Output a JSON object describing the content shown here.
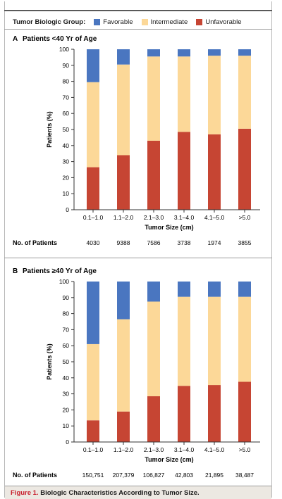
{
  "legend": {
    "title": "Tumor Biologic Group:",
    "items": [
      {
        "label": "Favorable",
        "color": "#4a76c0"
      },
      {
        "label": "Intermediate",
        "color": "#fcd898"
      },
      {
        "label": "Unfavorable",
        "color": "#c64533"
      }
    ]
  },
  "caption": {
    "label": "Figure 1.",
    "text": "Biologic Characteristics According to Tumor Size."
  },
  "chart_data": [
    {
      "type": "bar",
      "stacked": true,
      "panel_letter": "A",
      "title": "Patients <40 Yr of Age",
      "xlabel": "Tumor Size (cm)",
      "ylabel": "Patients (%)",
      "ylim": [
        0,
        100
      ],
      "yticks": [
        0,
        10,
        20,
        30,
        40,
        50,
        60,
        70,
        80,
        90,
        100
      ],
      "categories": [
        "0.1–1.0",
        "1.1–2.0",
        "2.1–3.0",
        "3.1–4.0",
        "4.1–5.0",
        ">5.0"
      ],
      "series": [
        {
          "name": "Unfavorable",
          "color": "#c64533",
          "values": [
            26.5,
            34,
            43,
            48.5,
            47,
            50.5
          ]
        },
        {
          "name": "Intermediate",
          "color": "#fcd898",
          "values": [
            53,
            56.5,
            52.5,
            47,
            49,
            45.5
          ]
        },
        {
          "name": "Favorable",
          "color": "#4a76c0",
          "values": [
            20.5,
            9.5,
            4.5,
            4.5,
            4,
            4
          ]
        }
      ],
      "patients_label": "No. of Patients",
      "patients": [
        "4030",
        "9388",
        "7586",
        "3738",
        "1974",
        "3855"
      ]
    },
    {
      "type": "bar",
      "stacked": true,
      "panel_letter": "B",
      "title": "Patients ≥40 Yr of Age",
      "xlabel": "Tumor Size (cm)",
      "ylabel": "Patients (%)",
      "ylim": [
        0,
        100
      ],
      "yticks": [
        0,
        10,
        20,
        30,
        40,
        50,
        60,
        70,
        80,
        90,
        100
      ],
      "categories": [
        "0.1–1.0",
        "1.1–2.0",
        "2.1–3.0",
        "3.1–4.0",
        "4.1–5.0",
        ">5.0"
      ],
      "series": [
        {
          "name": "Unfavorable",
          "color": "#c64533",
          "values": [
            13.5,
            19,
            28.5,
            35,
            35.5,
            37.5
          ]
        },
        {
          "name": "Intermediate",
          "color": "#fcd898",
          "values": [
            47.5,
            57.5,
            59,
            55.5,
            55,
            53
          ]
        },
        {
          "name": "Favorable",
          "color": "#4a76c0",
          "values": [
            39,
            23.5,
            12.5,
            9.5,
            9.5,
            9.5
          ]
        }
      ],
      "patients_label": "No. of Patients",
      "patients": [
        "150,751",
        "207,379",
        "106,827",
        "42,803",
        "21,895",
        "38,487"
      ]
    }
  ]
}
